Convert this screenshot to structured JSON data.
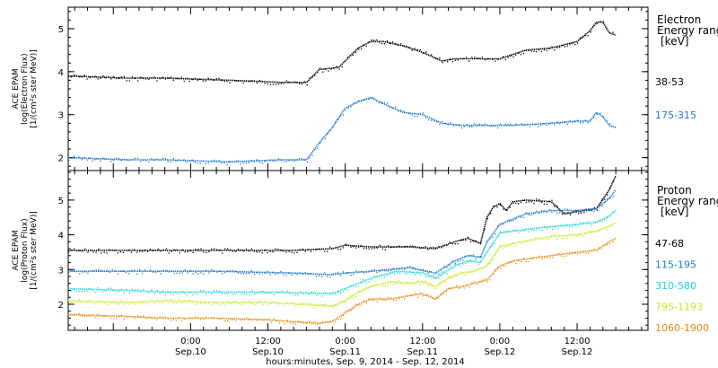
{
  "colors": {
    "frame": "#000000",
    "black": "#000000",
    "blue": "#1a78d2",
    "cyan": "#22d6d6",
    "yellow": "#c8e81e",
    "orange": "#e88a14"
  },
  "x_axis": {
    "label": "hours:minutes, Sep.  9, 2014 - Sep. 12, 2014",
    "ticks": [
      {
        "x": 24,
        "time": "0:00",
        "date": "Sep.10"
      },
      {
        "x": 36,
        "time": "12:00",
        "date": "Sep.10"
      },
      {
        "x": 48,
        "time": "0:00",
        "date": "Sep.11"
      },
      {
        "x": 60,
        "time": "12:00",
        "date": "Sep.11"
      },
      {
        "x": 72,
        "time": "0:00",
        "date": "Sep.12"
      },
      {
        "x": 84,
        "time": "12:00",
        "date": "Sep.12"
      }
    ]
  },
  "chart_data": [
    {
      "type": "line",
      "panel": "electron",
      "ylabel_lines": [
        "ACE EPAM",
        "log(Electron Flux)",
        "[1/(cm²s ster MeV)]"
      ],
      "ylim": [
        1.7,
        5.5
      ],
      "yticks": [
        2,
        3,
        4,
        5
      ],
      "xlim": [
        5,
        95
      ],
      "legend_title_lines": [
        "Electron",
        "Energy range",
        "[keV]"
      ],
      "series": [
        {
          "name": "38-53",
          "color": "black",
          "x": [
            5,
            14,
            20,
            30,
            38,
            42,
            44,
            47,
            50,
            52,
            54,
            57,
            60,
            63,
            65,
            68,
            72,
            76,
            80,
            84,
            86,
            87,
            88,
            89,
            90
          ],
          "y": [
            3.9,
            3.85,
            3.85,
            3.8,
            3.75,
            3.75,
            4.05,
            4.1,
            4.55,
            4.7,
            4.7,
            4.6,
            4.45,
            4.25,
            4.3,
            4.3,
            4.3,
            4.5,
            4.55,
            4.7,
            4.95,
            5.15,
            5.15,
            4.9,
            4.85
          ]
        },
        {
          "name": "175-315",
          "color": "blue",
          "x": [
            5,
            14,
            20,
            30,
            38,
            42,
            44,
            46,
            48,
            50,
            52,
            54,
            57,
            60,
            63,
            66,
            70,
            74,
            80,
            84,
            86,
            87,
            88,
            89,
            90
          ],
          "y": [
            2.0,
            1.95,
            1.95,
            1.9,
            1.95,
            1.95,
            2.35,
            2.7,
            3.15,
            3.3,
            3.4,
            3.25,
            3.05,
            3.0,
            2.8,
            2.75,
            2.75,
            2.75,
            2.8,
            2.85,
            2.85,
            3.05,
            2.95,
            2.75,
            2.7
          ]
        }
      ]
    },
    {
      "type": "line",
      "panel": "proton",
      "ylabel_lines": [
        "ACE EPAM",
        "log(Proton Flux)",
        "[1/(cm²s ster MeV)]"
      ],
      "ylim": [
        1.25,
        5.85
      ],
      "yticks": [
        2,
        3,
        4,
        5
      ],
      "xlim": [
        5,
        95
      ],
      "legend_title_lines": [
        "Proton",
        "Energy range",
        "[keV]"
      ],
      "series": [
        {
          "name": "47-68",
          "color": "black",
          "x": [
            5,
            16,
            28,
            40,
            46,
            48,
            52,
            58,
            62,
            65,
            67,
            69,
            70,
            71,
            72,
            73,
            74,
            76,
            80,
            82,
            85,
            87,
            89,
            90
          ],
          "y": [
            3.55,
            3.55,
            3.55,
            3.55,
            3.6,
            3.7,
            3.65,
            3.65,
            3.6,
            3.8,
            3.9,
            3.75,
            4.5,
            4.8,
            4.9,
            4.7,
            4.95,
            5.0,
            4.95,
            4.6,
            4.7,
            4.75,
            5.3,
            5.7
          ]
        },
        {
          "name": "115-195",
          "color": "blue",
          "x": [
            5,
            16,
            28,
            40,
            46,
            48,
            52,
            58,
            62,
            65,
            67,
            69,
            70,
            72,
            74,
            76,
            80,
            84,
            87,
            89,
            90
          ],
          "y": [
            2.95,
            2.95,
            2.95,
            2.9,
            2.85,
            2.9,
            2.95,
            3.05,
            2.9,
            3.25,
            3.4,
            3.35,
            3.8,
            4.3,
            4.45,
            4.6,
            4.7,
            4.7,
            4.75,
            5.05,
            5.3
          ]
        },
        {
          "name": "310-580",
          "color": "cyan",
          "x": [
            5,
            14,
            20,
            28,
            36,
            46,
            48,
            52,
            56,
            60,
            62,
            65,
            67,
            69,
            70,
            72,
            74,
            78,
            84,
            87,
            89,
            90
          ],
          "y": [
            2.45,
            2.4,
            2.35,
            2.35,
            2.35,
            2.3,
            2.45,
            2.75,
            2.95,
            2.9,
            2.75,
            3.1,
            3.25,
            3.2,
            3.5,
            4.05,
            4.1,
            4.2,
            4.3,
            4.35,
            4.55,
            4.7
          ]
        },
        {
          "name": "795-1193",
          "color": "yellow",
          "x": [
            5,
            14,
            20,
            28,
            36,
            46,
            48,
            50,
            52,
            55,
            58,
            60,
            62,
            64,
            66,
            68,
            70,
            72,
            74,
            80,
            84,
            87,
            89,
            90
          ],
          "y": [
            2.1,
            2.05,
            2.1,
            2.05,
            2.05,
            1.95,
            2.1,
            2.35,
            2.5,
            2.65,
            2.6,
            2.65,
            2.5,
            2.75,
            2.9,
            2.95,
            3.1,
            3.65,
            3.75,
            3.95,
            4.0,
            4.1,
            4.25,
            4.35
          ]
        },
        {
          "name": "1060-1900",
          "color": "orange",
          "x": [
            5,
            14,
            20,
            28,
            36,
            44,
            46,
            48,
            50,
            52,
            55,
            58,
            60,
            62,
            64,
            66,
            68,
            70,
            72,
            74,
            78,
            84,
            87,
            89,
            90
          ],
          "y": [
            1.7,
            1.65,
            1.6,
            1.6,
            1.55,
            1.45,
            1.5,
            1.75,
            2.0,
            2.15,
            2.15,
            2.25,
            2.3,
            2.15,
            2.45,
            2.5,
            2.6,
            2.7,
            3.1,
            3.25,
            3.35,
            3.5,
            3.55,
            3.8,
            3.9
          ]
        }
      ]
    }
  ]
}
